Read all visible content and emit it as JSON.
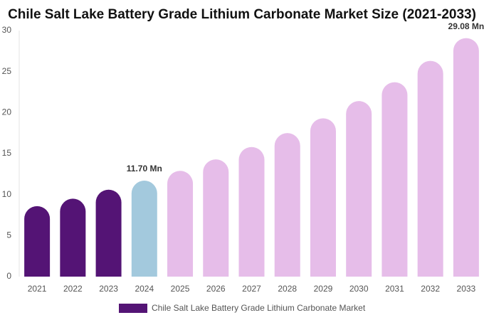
{
  "chart_data": {
    "type": "bar",
    "title": "Chile Salt Lake Battery Grade Lithium Carbonate Market Size (2021-2033)",
    "categories": [
      "2021",
      "2022",
      "2023",
      "2024",
      "2025",
      "2026",
      "2027",
      "2028",
      "2029",
      "2030",
      "2031",
      "2032",
      "2033"
    ],
    "series": [
      {
        "name": "Chile Salt Lake Battery Grade Lithium Carbonate Market",
        "color": "#541475",
        "values": [
          8.6,
          9.5,
          10.6,
          11.7,
          12.9,
          14.3,
          15.8,
          17.5,
          19.3,
          21.4,
          23.7,
          26.3,
          29.08
        ],
        "value_labels": [
          null,
          null,
          null,
          "11.70 Mn",
          null,
          null,
          null,
          null,
          null,
          null,
          null,
          null,
          "29.08 Mn"
        ],
        "colors": [
          "#541475",
          "#541475",
          "#541475",
          "#a3c9dd",
          "#e6bde9",
          "#e6bde9",
          "#e6bde9",
          "#e6bde9",
          "#e6bde9",
          "#e6bde9",
          "#e6bde9",
          "#e6bde9",
          "#e6bde9"
        ]
      }
    ],
    "ylim": [
      0,
      30
    ],
    "yticks": [
      0,
      5,
      10,
      15,
      20,
      25,
      30
    ],
    "grid": false,
    "legend": "bottom"
  }
}
